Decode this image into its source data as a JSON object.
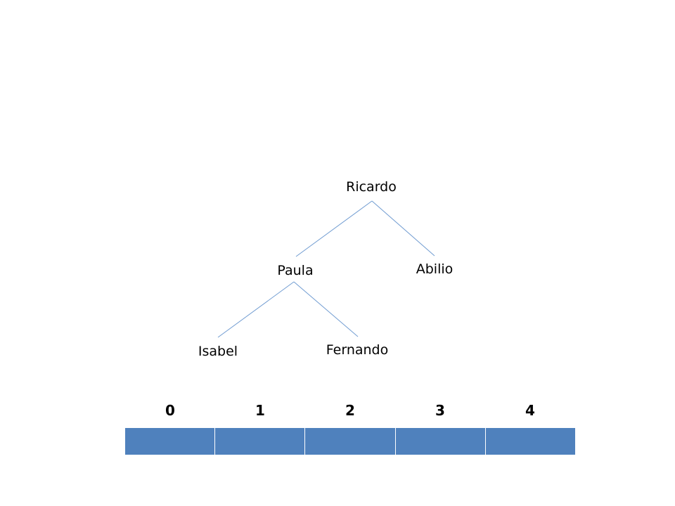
{
  "tree": {
    "root": "Ricardo",
    "left": "Paula",
    "right": "Abilio",
    "left_left": "Isabel",
    "left_right": "Fernando"
  },
  "array": {
    "indices": [
      "0",
      "1",
      "2",
      "3",
      "4"
    ],
    "cells": [
      "",
      "",
      "",
      "",
      ""
    ]
  },
  "colors": {
    "edge": "#6f9bd1",
    "cell_fill": "#4f81bd"
  }
}
